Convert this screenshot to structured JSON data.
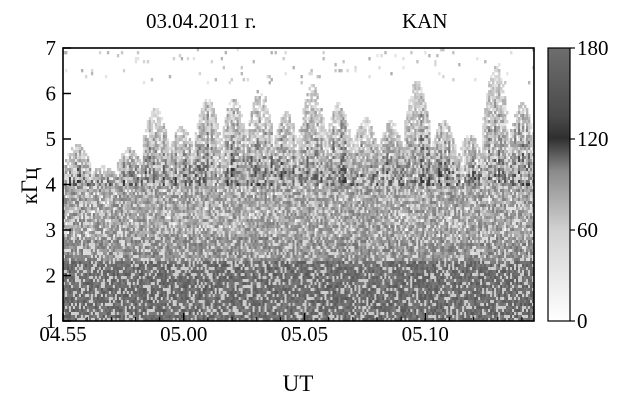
{
  "header": {
    "date": "03.04.2011 г.",
    "station": "KAN"
  },
  "chart_data": {
    "type": "heatmap",
    "title": "",
    "xlabel": "UT",
    "ylabel": "кГц",
    "x_ticks": [
      "04.55",
      "05.00",
      "05.05",
      "05.10"
    ],
    "x_tick_values": [
      295,
      300,
      305,
      310
    ],
    "xlim": [
      295,
      314.5
    ],
    "y_ticks": [
      "1",
      "2",
      "3",
      "4",
      "5",
      "6",
      "7"
    ],
    "y_tick_values": [
      1,
      2,
      3,
      4,
      5,
      6,
      7
    ],
    "ylim": [
      1,
      7
    ],
    "colorbar": {
      "ticks": [
        "0",
        "60",
        "120",
        "180"
      ],
      "tick_values": [
        0,
        60,
        120,
        180
      ],
      "range": [
        0,
        180
      ]
    },
    "grid": false,
    "burst_peaks_khz": [
      4.9,
      4.4,
      4.8,
      5.7,
      5.3,
      5.9,
      5.9,
      6.1,
      5.6,
      6.2,
      5.8,
      5.5,
      5.4,
      6.3,
      5.4,
      5.1,
      6.6,
      5.8
    ]
  }
}
